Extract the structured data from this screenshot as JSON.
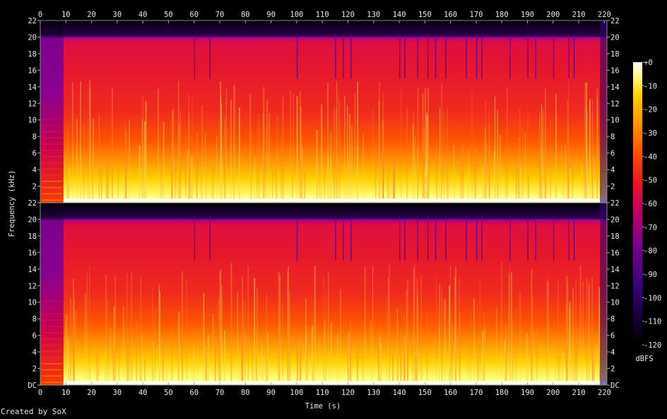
{
  "chart_data": {
    "type": "heatmap",
    "title": "",
    "xlabel": "Time (s)",
    "ylabel": "Frequency (kHz)",
    "xlim": [
      0,
      221
    ],
    "ylim": [
      0,
      22
    ],
    "x_ticks": [
      "0",
      "10",
      "20",
      "30",
      "40",
      "50",
      "60",
      "70",
      "80",
      "90",
      "100",
      "110",
      "120",
      "130",
      "140",
      "150",
      "160",
      "170",
      "180",
      "190",
      "200",
      "210",
      "220"
    ],
    "y_ticks": [
      "DC",
      "2",
      "4",
      "6",
      "8",
      "10",
      "12",
      "14",
      "16",
      "18",
      "20",
      "22"
    ],
    "channels": 2,
    "colorbar": {
      "label": "dBFS",
      "ticks": [
        "+0",
        "-10",
        "-20",
        "-30",
        "-40",
        "-50",
        "-60",
        "-70",
        "-80",
        "-90",
        "-100",
        "-110",
        "-120"
      ],
      "range": [
        -120,
        0
      ],
      "colors": [
        "#000000",
        "#2a0050",
        "#5a008f",
        "#9a0090",
        "#cc0050",
        "#ee1a1a",
        "#ff5a00",
        "#ff9a00",
        "#ffd000",
        "#ffff80",
        "#ffffff"
      ]
    },
    "cutoff_khz": 20,
    "quiet_intro_end_s": 9,
    "end_of_audio_s": 221
  },
  "footer": {
    "credit": "Created by SoX"
  }
}
